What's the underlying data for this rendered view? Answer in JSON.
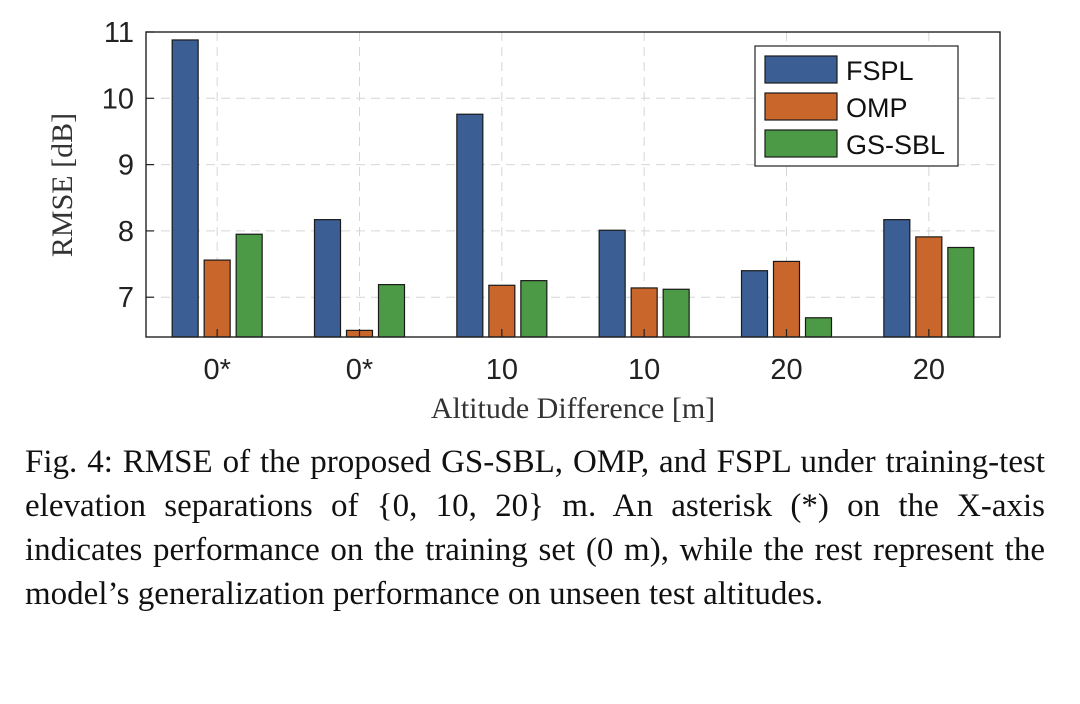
{
  "chart_data": {
    "type": "bar",
    "categories": [
      "0*",
      "0*",
      "10",
      "10",
      "20",
      "20"
    ],
    "series": [
      {
        "name": "FSPL",
        "color": "#3b5f94",
        "values": [
          10.88,
          8.17,
          9.76,
          8.01,
          7.4,
          8.17
        ]
      },
      {
        "name": "OMP",
        "color": "#c8662c",
        "values": [
          7.56,
          6.5,
          7.18,
          7.14,
          7.54,
          7.91
        ]
      },
      {
        "name": "GS-SBL",
        "color": "#4c9a45",
        "values": [
          7.95,
          7.19,
          7.25,
          7.12,
          6.69,
          7.75
        ]
      }
    ],
    "title": "",
    "xlabel": "Altitude Difference [m]",
    "ylabel": "RMSE [dB]",
    "ylim": [
      6.4,
      11
    ],
    "yticks": [
      "7",
      "8",
      "9",
      "10",
      "11"
    ],
    "grid": true,
    "legend_position": "top-right"
  },
  "caption": {
    "label": "Fig. 4:",
    "text": "RMSE of the proposed GS-SBL, OMP, and FSPL under training-test elevation separations of {0, 10, 20} m. An asterisk (*) on the X-axis indicates performance on the training set (0 m), while the rest represent the model’s generalization performance on unseen test altitudes."
  }
}
